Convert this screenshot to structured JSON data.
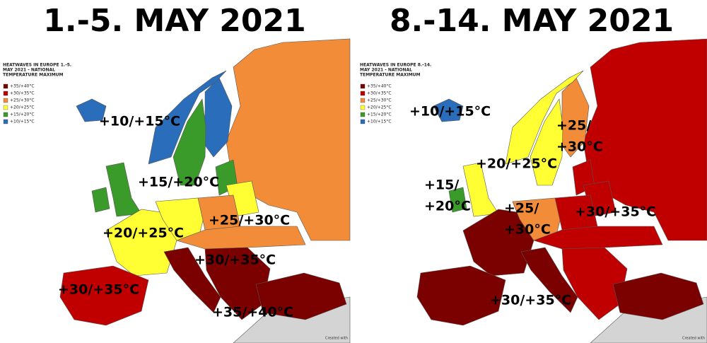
{
  "panels": [
    {
      "title": "1.-5. MAY 2021",
      "map_title": [
        "HEATWAVES IN EUROPE 1.-5.",
        "MAY 2021 - NATIONAL",
        "TEMPERATURE MAXIMUM"
      ],
      "legend": [
        {
          "label": "+35/+40°C",
          "color": "#7b0000"
        },
        {
          "label": "+30/+35°C",
          "color": "#c00000"
        },
        {
          "label": "+25/+30°C",
          "color": "#f28c38"
        },
        {
          "label": "+20/+25°C",
          "color": "#ffff33"
        },
        {
          "label": "+15/+20°C",
          "color": "#3a9a2a"
        },
        {
          "label": "+10/+15°C",
          "color": "#2a6ebb"
        }
      ],
      "labels": [
        [
          "+10/+15°C"
        ],
        [
          "+15/+20°C"
        ],
        [
          "+20/+25°C"
        ],
        [
          "+25/+30°C"
        ],
        [
          "+30/+35°C"
        ],
        [
          "+30/+35°C"
        ],
        [
          "+35/+40°C"
        ]
      ],
      "credit": "Created with"
    },
    {
      "title": "8.-14. MAY 2021",
      "map_title": [
        "HEATWAVES IN EUROPE 8.-14.",
        "MAY 2021 - NATIONAL",
        "TEMPERATURE MAXIMUM"
      ],
      "legend": [
        {
          "label": "+35/+40°C",
          "color": "#7b0000"
        },
        {
          "label": "+30/+35°C",
          "color": "#c00000"
        },
        {
          "label": "+25/+30°C",
          "color": "#f28c38"
        },
        {
          "label": "+20/+25°C",
          "color": "#ffff33"
        },
        {
          "label": "+15/+20°C",
          "color": "#3a9a2a"
        },
        {
          "label": "+10/+15°C",
          "color": "#2a6ebb"
        }
      ],
      "labels": [
        [
          "+10/+15°C"
        ],
        [
          "+25/",
          "+30°C"
        ],
        [
          "+20/+25°C"
        ],
        [
          "+15/",
          "+20°C"
        ],
        [
          "+25/",
          "+30°C"
        ],
        [
          "+30/+35°C"
        ],
        [
          "+30/+35°C"
        ]
      ],
      "credit": "Created with"
    }
  ]
}
